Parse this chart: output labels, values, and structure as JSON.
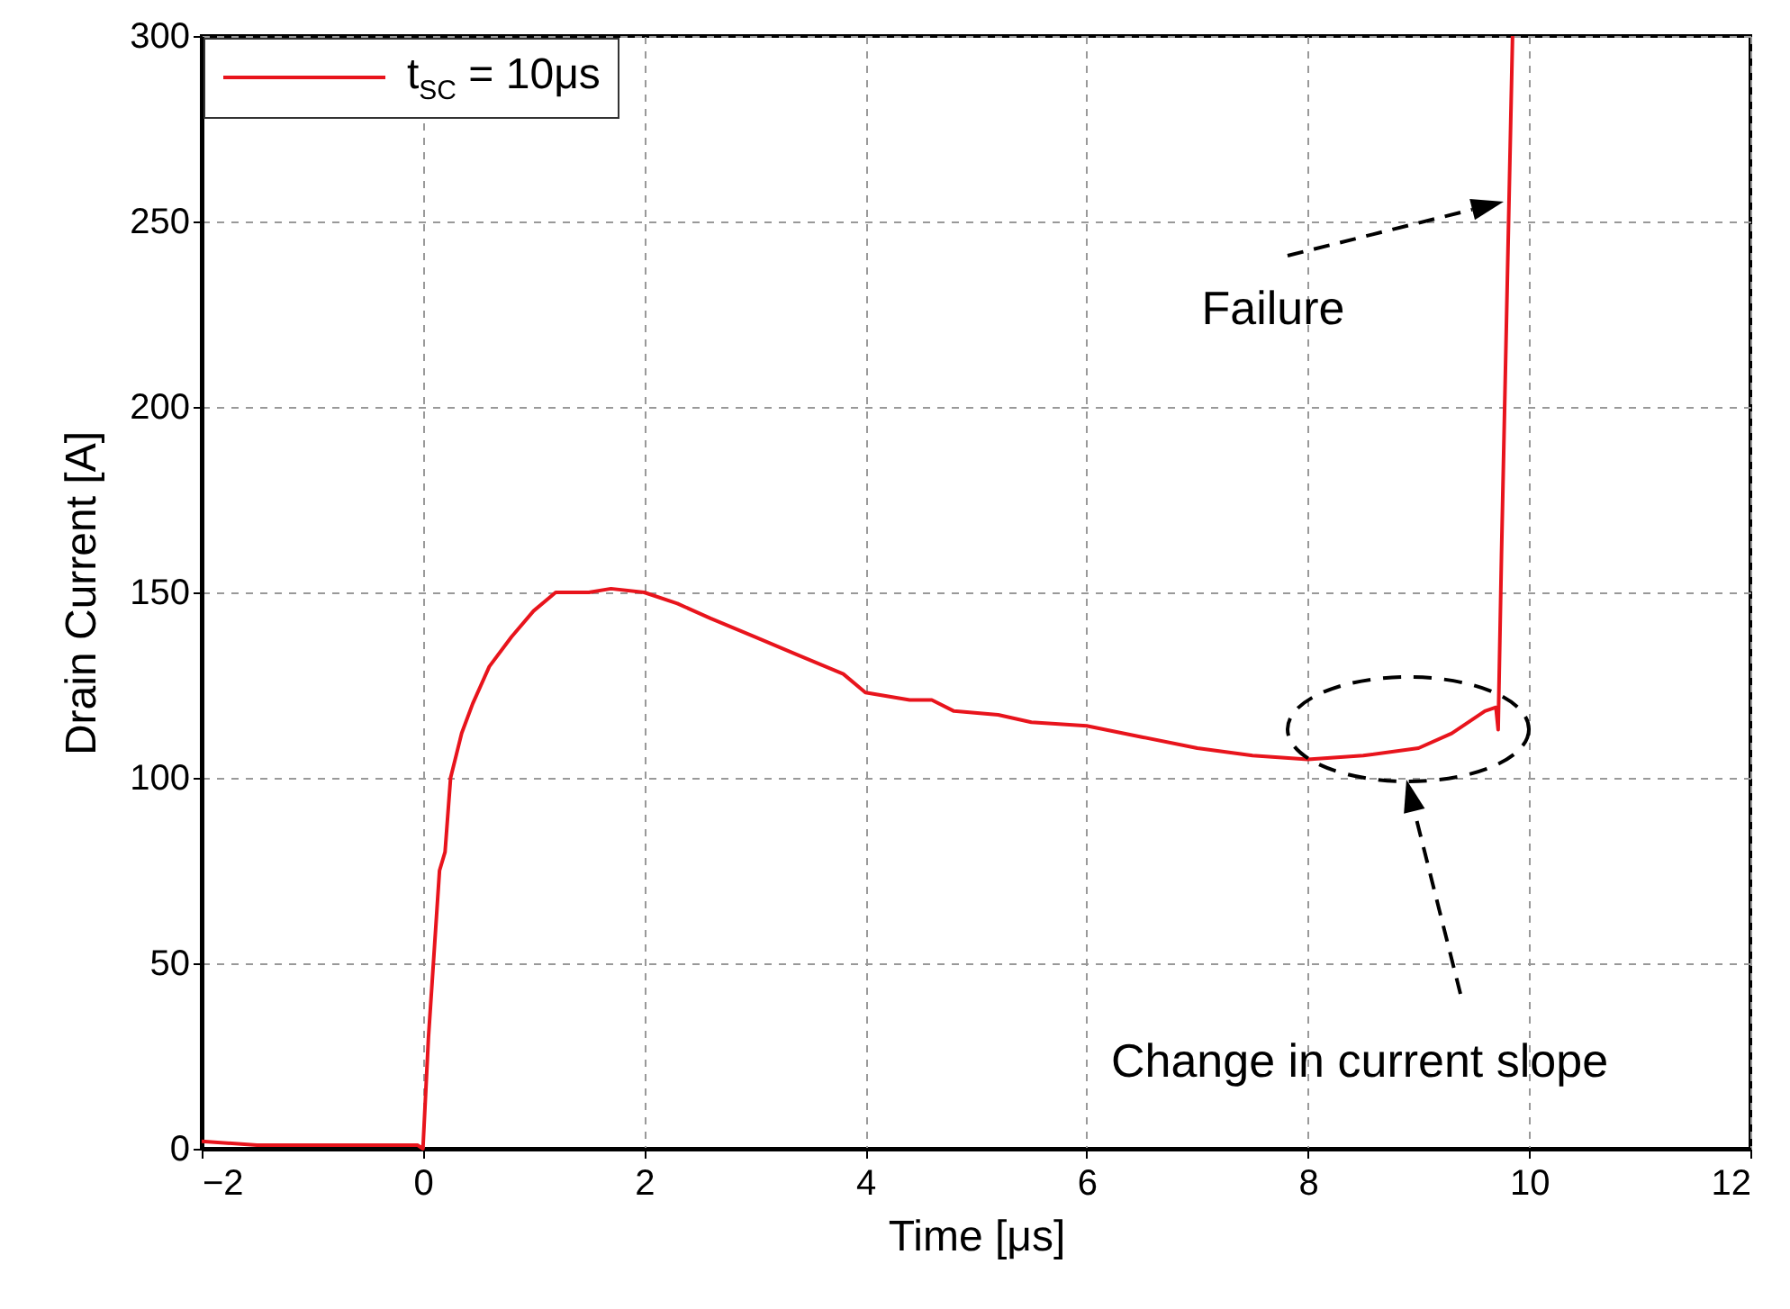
{
  "chart_data": {
    "type": "line",
    "xlabel": "Time [μs]",
    "ylabel": "Drain Current [A]",
    "xlim": [
      -2,
      12
    ],
    "ylim": [
      0,
      300
    ],
    "xticks": [
      -2,
      0,
      2,
      4,
      6,
      8,
      10,
      12
    ],
    "yticks": [
      0,
      50,
      100,
      150,
      200,
      250,
      300
    ],
    "grid": true,
    "legend": "top left",
    "series": [
      {
        "name": "t$_{SC}$ = 10μs",
        "color": "#e8141c",
        "x": [
          -2,
          -1.5,
          -1,
          -0.5,
          -0.05,
          0,
          0.05,
          0.15,
          0.2,
          0.25,
          0.35,
          0.45,
          0.6,
          0.8,
          1,
          1.2,
          1.5,
          1.7,
          2,
          2.3,
          2.6,
          3,
          3.4,
          3.8,
          4,
          4.4,
          4.6,
          4.8,
          5.2,
          5.5,
          6,
          6.5,
          7,
          7.5,
          8,
          8.5,
          9,
          9.3,
          9.6,
          9.7,
          9.72,
          9.75,
          9.85
        ],
        "values": [
          2,
          1,
          1,
          1,
          1,
          0,
          30,
          75,
          80,
          100,
          112,
          120,
          130,
          138,
          145,
          150,
          150,
          151,
          150,
          147,
          143,
          138,
          133,
          128,
          123,
          121,
          121,
          118,
          117,
          115,
          114,
          111,
          108,
          106,
          105,
          106,
          108,
          112,
          118,
          119,
          113,
          160,
          300
        ]
      }
    ],
    "annotations": [
      "Failure",
      "Change in current slope"
    ]
  }
}
